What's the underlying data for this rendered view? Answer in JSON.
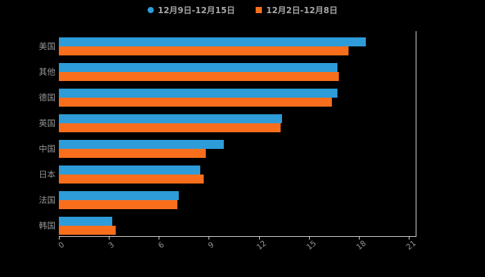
{
  "chart_data": {
    "type": "bar",
    "orientation": "horizontal",
    "title": "",
    "categories": [
      "美国",
      "其他",
      "德国",
      "英国",
      "中国",
      "日本",
      "法国",
      "韩国"
    ],
    "series": [
      {
        "name": "12月9日-12月15日",
        "marker": "circle",
        "color": "#2E9CD8",
        "values": [
          18.4,
          16.7,
          16.7,
          13.4,
          9.9,
          8.5,
          7.2,
          3.2
        ]
      },
      {
        "name": "12月2日-12月8日",
        "marker": "square",
        "color": "#F96E1C",
        "values": [
          17.4,
          16.8,
          16.4,
          13.3,
          8.8,
          8.7,
          7.1,
          3.4
        ]
      }
    ],
    "xlim": [
      0,
      21
    ],
    "xticks": [
      0,
      3,
      6,
      9,
      12,
      15,
      18,
      21
    ],
    "grid": false,
    "legend_position": "top",
    "background": "#000000",
    "axis_line_color": "#d9d9d9",
    "label_color": "#969696"
  }
}
